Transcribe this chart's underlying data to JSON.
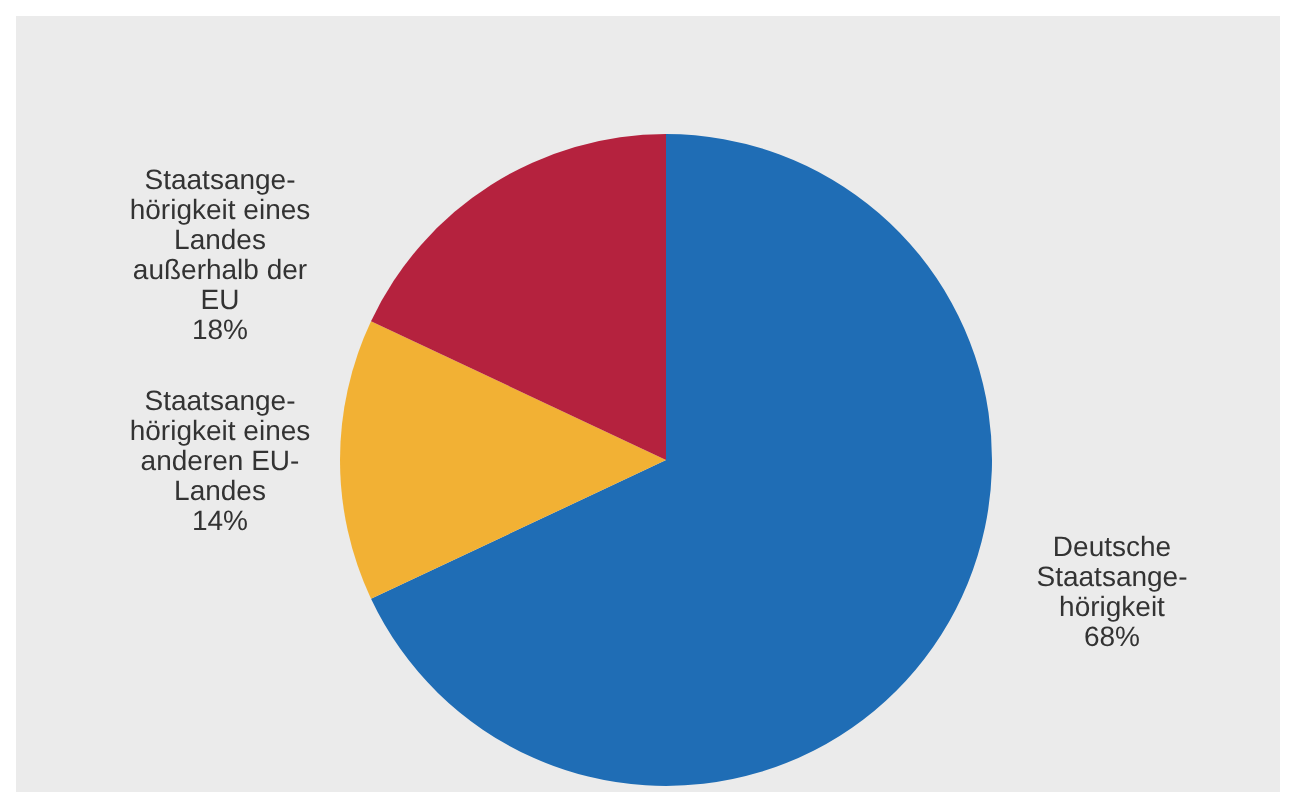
{
  "chart_data": {
    "type": "pie",
    "categories": [
      "Deutsche\nStaatsange-\nhörigkeit",
      "Staatsange-\nhörigkeit eines\nanderen EU-\nLandes",
      "Staatsange-\nhörigkeit eines\nLandes\naußerhalb der\nEU"
    ],
    "values": [
      68,
      14,
      18
    ],
    "colors": [
      "#1f6db5",
      "#f2b134",
      "#b5223e"
    ],
    "value_labels": [
      "68%",
      "14%",
      "18%"
    ]
  }
}
